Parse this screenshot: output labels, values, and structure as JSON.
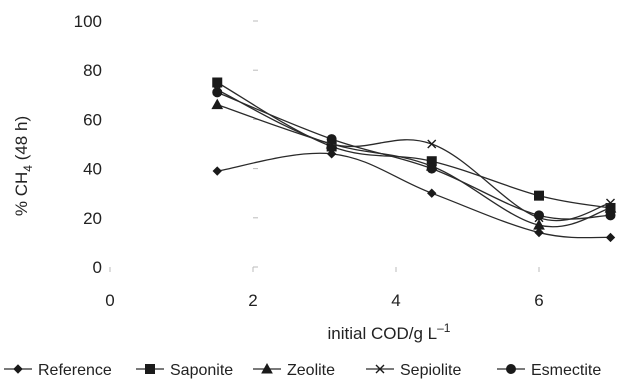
{
  "chart_data": {
    "type": "line",
    "title": "",
    "xlabel": "initial COD/g L",
    "xlabel_sup": "–1",
    "ylabel": "% CH",
    "ylabel_sub": "4",
    "ylabel_suffix": " (48 h)",
    "xlim": [
      0,
      7
    ],
    "ylim": [
      0,
      100
    ],
    "x_ticks": [
      0,
      2,
      4,
      6
    ],
    "y_ticks": [
      0,
      20,
      40,
      60,
      80,
      100
    ],
    "grid": false,
    "legend_position": "bottom",
    "series": [
      {
        "name": "Reference",
        "marker": "diamond",
        "x": [
          1.5,
          3.1,
          4.5,
          6,
          7
        ],
        "y": [
          39,
          46,
          30,
          14,
          12
        ]
      },
      {
        "name": "Saponite",
        "marker": "square",
        "x": [
          1.5,
          3.1,
          4.5,
          6,
          7
        ],
        "y": [
          75,
          49,
          43,
          29,
          24
        ]
      },
      {
        "name": "Zeolite",
        "marker": "triangle",
        "x": [
          1.5,
          3.1,
          4.5,
          6,
          7
        ],
        "y": [
          66,
          50,
          41,
          17,
          24
        ]
      },
      {
        "name": "Sepiolite",
        "marker": "cross",
        "x": [
          1.5,
          3.1,
          4.5,
          6,
          7
        ],
        "y": [
          72,
          50,
          50,
          20,
          26
        ]
      },
      {
        "name": "Esmectite",
        "marker": "circle",
        "x": [
          1.5,
          3.1,
          4.5,
          6,
          7
        ],
        "y": [
          71,
          52,
          40,
          21,
          21
        ]
      }
    ]
  }
}
